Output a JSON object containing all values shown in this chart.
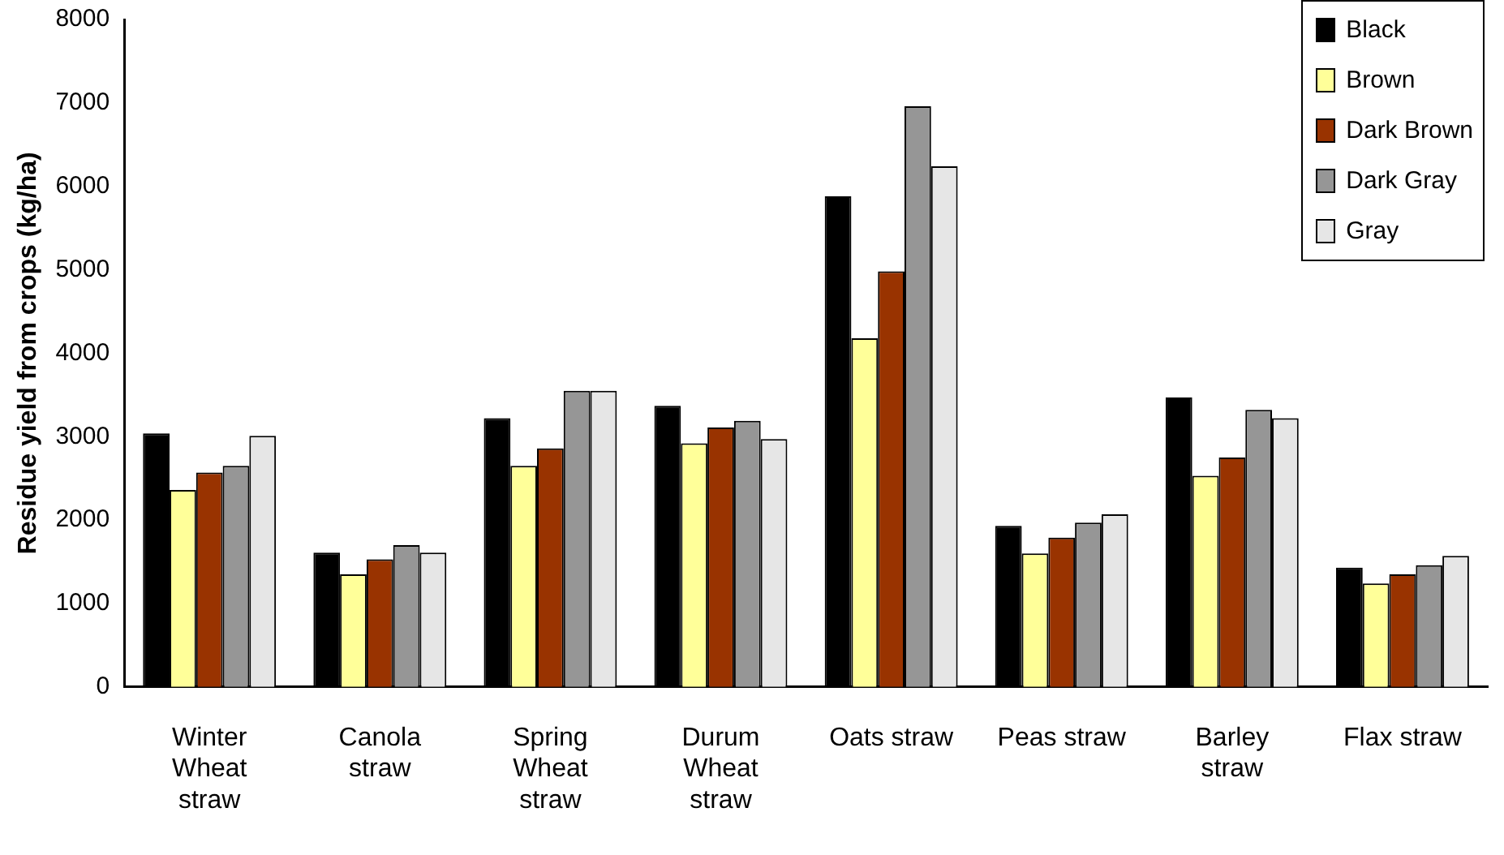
{
  "chart_data": {
    "type": "bar",
    "ylabel": "Residue yield from crops (kg/ha)",
    "categories": [
      "Winter Wheat straw",
      "Canola straw",
      "Spring Wheat straw",
      "Durum Wheat straw",
      "Oats straw",
      "Peas straw",
      "Barley straw",
      "Flax straw"
    ],
    "series": [
      {
        "name": "Black",
        "color": "#000000",
        "values": [
          3040,
          1610,
          3220,
          3370,
          5880,
          1930,
          3470,
          1430
        ]
      },
      {
        "name": "Brown",
        "color": "#ffff99",
        "values": [
          2360,
          1350,
          2650,
          2920,
          4180,
          1600,
          2530,
          1240
        ]
      },
      {
        "name": "Dark Brown",
        "color": "#993300",
        "values": [
          2570,
          1530,
          2860,
          3110,
          4980,
          1790,
          2750,
          1350
        ]
      },
      {
        "name": "Dark Gray",
        "color": "#969696",
        "values": [
          2650,
          1700,
          3550,
          3190,
          6960,
          1970,
          3320,
          1460
        ]
      },
      {
        "name": "Gray",
        "color": "#e6e6e6",
        "values": [
          3010,
          1610,
          3550,
          2970,
          6240,
          2070,
          3220,
          1570
        ]
      }
    ],
    "ylim": [
      0,
      8000
    ],
    "yticks": [
      0,
      1000,
      2000,
      3000,
      4000,
      5000,
      6000,
      7000,
      8000
    ],
    "grid": false,
    "legend": "top right"
  }
}
